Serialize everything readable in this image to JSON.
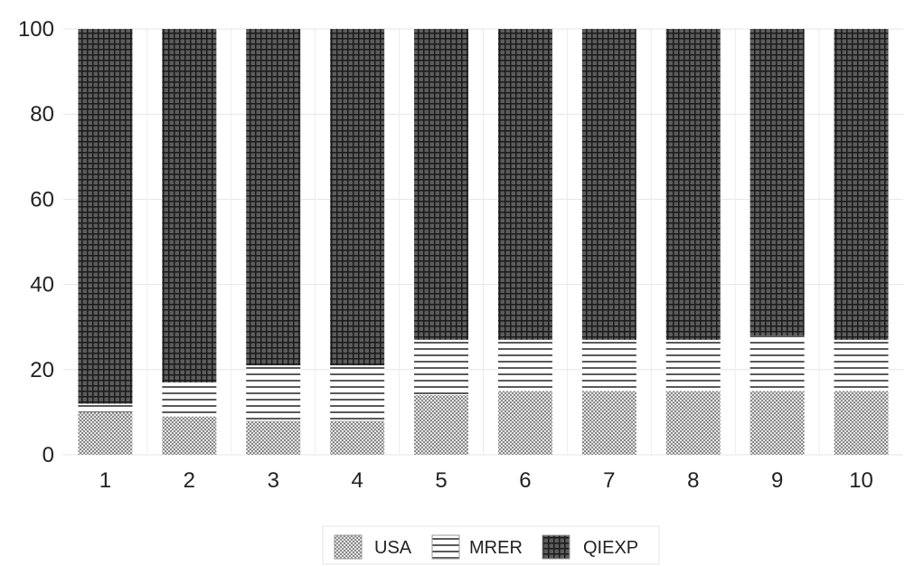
{
  "chart_data": {
    "type": "bar",
    "stacked": true,
    "categories": [
      "1",
      "2",
      "3",
      "4",
      "5",
      "6",
      "7",
      "8",
      "9",
      "10"
    ],
    "series": [
      {
        "name": "USA",
        "pattern": "dots",
        "values": [
          10,
          9,
          8,
          8,
          14,
          15,
          15,
          15,
          15,
          15
        ]
      },
      {
        "name": "MRER",
        "pattern": "horizontal",
        "values": [
          2,
          8,
          13,
          13,
          13,
          12,
          12,
          12,
          13,
          12
        ]
      },
      {
        "name": "QIEXP",
        "pattern": "grid",
        "values": [
          88,
          83,
          79,
          79,
          73,
          73,
          73,
          73,
          72,
          73
        ]
      }
    ],
    "yticks": [
      "0",
      "20",
      "40",
      "60",
      "80",
      "100"
    ],
    "ylim": [
      0,
      100
    ],
    "grid": true,
    "legend_position": "bottom",
    "title": "",
    "xlabel": "",
    "ylabel": ""
  }
}
